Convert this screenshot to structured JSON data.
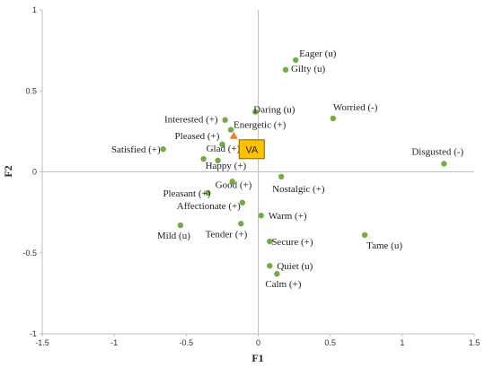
{
  "chart_data": {
    "type": "scatter",
    "xlabel": "F1",
    "ylabel": "F2",
    "xlim": [
      -1.5,
      1.5
    ],
    "ylim": [
      -1,
      1
    ],
    "xticks": [
      "-1.5",
      "-1",
      "-0.5",
      "0",
      "0.5",
      "1",
      "1.5"
    ],
    "yticks": [
      "-1",
      "-0.5",
      "0",
      "0.5",
      "1"
    ],
    "grid": false,
    "point_color": "#70ad47",
    "points": [
      {
        "label": "Eager (u)",
        "x": 0.26,
        "y": 0.69
      },
      {
        "label": "Gilty (u)",
        "x": 0.19,
        "y": 0.63
      },
      {
        "label": "Worried (-)",
        "x": 0.52,
        "y": 0.33
      },
      {
        "label": "Daring (u)",
        "x": -0.02,
        "y": 0.37
      },
      {
        "label": "Interested (+)",
        "x": -0.23,
        "y": 0.32
      },
      {
        "label": "Energetic (+)",
        "x": -0.19,
        "y": 0.26
      },
      {
        "label": "Pleased (+)",
        "x": -0.25,
        "y": 0.17
      },
      {
        "label": "Satisfied (+)",
        "x": -0.66,
        "y": 0.14
      },
      {
        "label": "Glad (+)",
        "x": -0.38,
        "y": 0.08
      },
      {
        "label": "Happy (+)",
        "x": -0.28,
        "y": 0.07
      },
      {
        "label": "Disgusted (-)",
        "x": 1.29,
        "y": 0.05
      },
      {
        "label": "Nostalgic (+)",
        "x": 0.16,
        "y": -0.03
      },
      {
        "label": "Good (+)",
        "x": -0.18,
        "y": -0.06
      },
      {
        "label": "Pleasant (+)",
        "x": -0.35,
        "y": -0.13
      },
      {
        "label": "Affectionate (+)",
        "x": -0.11,
        "y": -0.19
      },
      {
        "label": "Warm (+)",
        "x": 0.02,
        "y": -0.27
      },
      {
        "label": "Tender (+)",
        "x": -0.12,
        "y": -0.32
      },
      {
        "label": "Mild (u)",
        "x": -0.54,
        "y": -0.33
      },
      {
        "label": "Tame (u)",
        "x": 0.74,
        "y": -0.39
      },
      {
        "label": "Secure (+)",
        "x": 0.08,
        "y": -0.43
      },
      {
        "label": "Quiet (u)",
        "x": 0.08,
        "y": -0.58
      },
      {
        "label": "Calm (+)",
        "x": 0.13,
        "y": -0.63
      }
    ],
    "va_marker": {
      "label": "VA",
      "x": -0.17,
      "y": 0.22,
      "marker_color": "#ed7d31",
      "box_fill": "#ffc000",
      "box_stroke": "#7f6000"
    }
  }
}
